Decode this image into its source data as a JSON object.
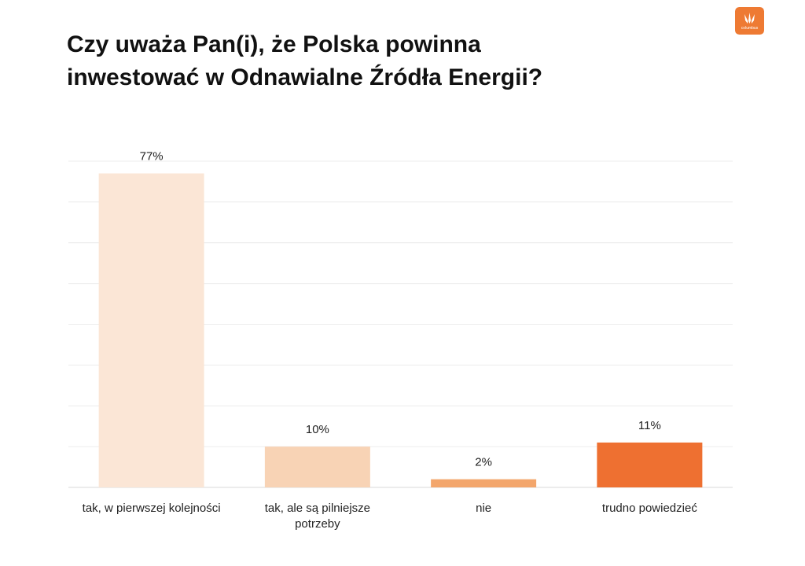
{
  "title_lines": [
    "Czy uważa Pan(i), że Polska powinna",
    "inwestować w Odnawialne Źródła Energii?"
  ],
  "logo": {
    "name": "columbus",
    "color": "#ee7a33"
  },
  "chart_data": {
    "type": "bar",
    "categories": [
      "tak, w pierwszej kolejności",
      "tak, ale są pilniejsze potrzeby",
      "nie",
      "trudno powiedzieć"
    ],
    "values": [
      77,
      10,
      2,
      11
    ],
    "value_labels": [
      "77%",
      "10%",
      "2%",
      "11%"
    ],
    "colors": [
      "#fbe6d6",
      "#f8d3b5",
      "#f3a66c",
      "#ee7031"
    ],
    "ylim": [
      0,
      80
    ],
    "grid": true,
    "xlabel": "",
    "ylabel": ""
  }
}
